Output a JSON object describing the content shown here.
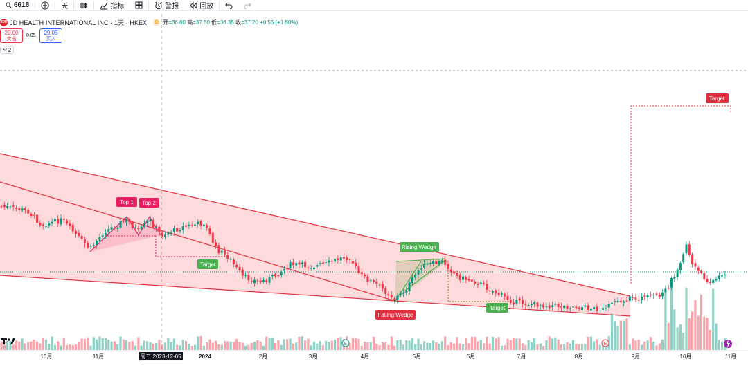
{
  "toolbar": {
    "symbol": "6618",
    "interval": "天",
    "indicators": "指标",
    "alert": "警报",
    "replay": "回放"
  },
  "legend": {
    "logo_text": "JDH",
    "symbol_name": "JD HEALTH INTERNATIONAL INC · 1天 · HKEX",
    "d_badge": "D",
    "open_label": "开",
    "open": "=36.60",
    "high_label": "高",
    "high": "=37.50",
    "low_label": "低",
    "low": "=36.35",
    "close_label": "收",
    "close": "=37.20",
    "change": "+0.55 (+1.50%)"
  },
  "order": {
    "sell_price": "29.00",
    "sell_label": "卖出",
    "spread": "0.05",
    "buy_price": "29.05",
    "buy_label": "买入",
    "collapse_count": "2"
  },
  "chart_data": {
    "type": "candlestick",
    "x_ticks": [
      "10月",
      "11月",
      "2024",
      "2月",
      "3月",
      "4月",
      "5月",
      "6月",
      "7月",
      "8月",
      "9月",
      "10月",
      "11月"
    ],
    "crosshair_date": "周二 2023-12-05",
    "annotations": [
      "Top 1",
      "Top 2",
      "Target",
      "Rising Wedge",
      "Falling Wedge",
      "Target",
      "Target"
    ],
    "event_markers": [
      "E",
      "E"
    ],
    "colors": {
      "up": "#089981",
      "down": "#f23645",
      "pattern": "#e91e63",
      "target": "#4caf50",
      "wedge": "#f23645"
    }
  },
  "colors": {
    "accent": "#2962ff",
    "sell": "#f23645",
    "buy": "#2962ff"
  }
}
